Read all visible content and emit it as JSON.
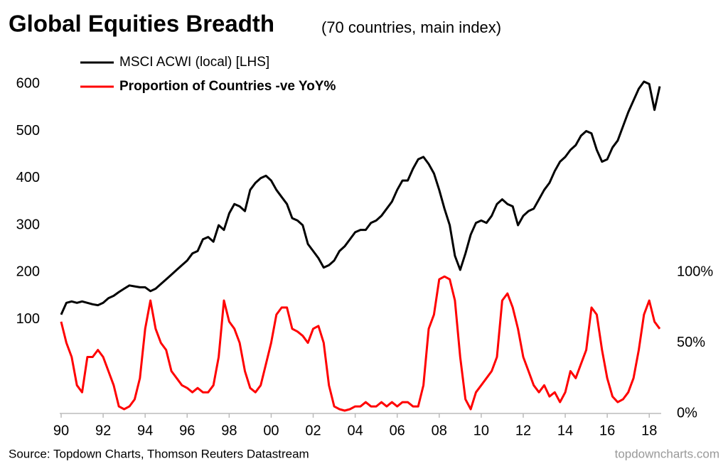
{
  "chart_data": {
    "type": "line",
    "title": "Global Equities Breadth",
    "subtitle": "(70 countries, main index)",
    "source": "Source: Topdown Charts, Thomson Reuters Datastream",
    "watermark": "topdowncharts.com",
    "x": [
      1990,
      1990.25,
      1990.5,
      1990.75,
      1991,
      1991.25,
      1991.5,
      1991.75,
      1992,
      1992.25,
      1992.5,
      1992.75,
      1993,
      1993.25,
      1993.5,
      1993.75,
      1994,
      1994.25,
      1994.5,
      1994.75,
      1995,
      1995.25,
      1995.5,
      1995.75,
      1996,
      1996.25,
      1996.5,
      1996.75,
      1997,
      1997.25,
      1997.5,
      1997.75,
      1998,
      1998.25,
      1998.5,
      1998.75,
      1999,
      1999.25,
      1999.5,
      1999.75,
      2000,
      2000.25,
      2000.5,
      2000.75,
      2001,
      2001.25,
      2001.5,
      2001.75,
      2002,
      2002.25,
      2002.5,
      2002.75,
      2003,
      2003.25,
      2003.5,
      2003.75,
      2004,
      2004.25,
      2004.5,
      2004.75,
      2005,
      2005.25,
      2005.5,
      2005.75,
      2006,
      2006.25,
      2006.5,
      2006.75,
      2007,
      2007.25,
      2007.5,
      2007.75,
      2008,
      2008.25,
      2008.5,
      2008.75,
      2009,
      2009.25,
      2009.5,
      2009.75,
      2010,
      2010.25,
      2010.5,
      2010.75,
      2011,
      2011.25,
      2011.5,
      2011.75,
      2012,
      2012.25,
      2012.5,
      2012.75,
      2013,
      2013.25,
      2013.5,
      2013.75,
      2014,
      2014.25,
      2014.5,
      2014.75,
      2015,
      2015.25,
      2015.5,
      2015.75,
      2016,
      2016.25,
      2016.5,
      2016.75,
      2017,
      2017.25,
      2017.5,
      2017.75,
      2018,
      2018.25,
      2018.5
    ],
    "series": [
      {
        "name": "MSCI ACWI (local) [LHS]",
        "color": "#000000",
        "axis": "y",
        "values": [
          110,
          135,
          138,
          135,
          138,
          135,
          132,
          130,
          135,
          145,
          150,
          158,
          165,
          172,
          170,
          168,
          168,
          160,
          165,
          175,
          185,
          195,
          205,
          215,
          225,
          240,
          245,
          270,
          275,
          265,
          300,
          290,
          325,
          345,
          340,
          330,
          375,
          390,
          400,
          405,
          395,
          375,
          360,
          345,
          315,
          310,
          300,
          260,
          245,
          230,
          210,
          215,
          225,
          245,
          255,
          270,
          285,
          290,
          290,
          305,
          310,
          320,
          335,
          350,
          375,
          395,
          395,
          420,
          440,
          445,
          430,
          410,
          375,
          335,
          300,
          235,
          205,
          240,
          280,
          305,
          310,
          305,
          320,
          345,
          355,
          345,
          340,
          300,
          320,
          330,
          335,
          355,
          375,
          390,
          415,
          435,
          445,
          460,
          470,
          490,
          500,
          495,
          460,
          435,
          440,
          465,
          480,
          510,
          540,
          565,
          590,
          605,
          600,
          545,
          595
        ]
      },
      {
        "name": "Proportion of Countries -ve YoY%",
        "color": "#ff0000",
        "axis": "y2",
        "values": [
          65,
          50,
          40,
          20,
          15,
          40,
          40,
          45,
          40,
          30,
          20,
          5,
          3,
          5,
          10,
          25,
          60,
          80,
          60,
          50,
          45,
          30,
          25,
          20,
          18,
          15,
          18,
          15,
          15,
          20,
          40,
          80,
          65,
          60,
          50,
          30,
          18,
          15,
          20,
          35,
          50,
          70,
          75,
          75,
          60,
          58,
          55,
          50,
          60,
          62,
          50,
          20,
          5,
          3,
          2,
          3,
          5,
          5,
          8,
          5,
          5,
          8,
          5,
          8,
          5,
          8,
          8,
          5,
          5,
          20,
          60,
          70,
          95,
          97,
          95,
          80,
          40,
          10,
          3,
          15,
          20,
          25,
          30,
          40,
          80,
          85,
          75,
          60,
          40,
          30,
          20,
          15,
          20,
          12,
          15,
          8,
          15,
          30,
          25,
          35,
          45,
          75,
          70,
          45,
          25,
          12,
          8,
          10,
          15,
          25,
          45,
          70,
          80,
          65,
          60
        ]
      }
    ],
    "xlim": [
      1990,
      2018.5
    ],
    "xticks": [
      {
        "value": 1990,
        "label": "90"
      },
      {
        "value": 1992,
        "label": "92"
      },
      {
        "value": 1994,
        "label": "94"
      },
      {
        "value": 1996,
        "label": "96"
      },
      {
        "value": 1998,
        "label": "98"
      },
      {
        "value": 2000,
        "label": "00"
      },
      {
        "value": 2002,
        "label": "02"
      },
      {
        "value": 2004,
        "label": "04"
      },
      {
        "value": 2006,
        "label": "06"
      },
      {
        "value": 2008,
        "label": "08"
      },
      {
        "value": 2010,
        "label": "10"
      },
      {
        "value": 2012,
        "label": "12"
      },
      {
        "value": 2014,
        "label": "14"
      },
      {
        "value": 2016,
        "label": "16"
      },
      {
        "value": 2018,
        "label": "18"
      }
    ],
    "ylim": [
      -100,
      620
    ],
    "yticks": [
      100,
      200,
      300,
      400,
      500,
      600
    ],
    "y2lim": [
      0,
      240
    ],
    "y2ticks": [
      {
        "value": 0,
        "label": "0%"
      },
      {
        "value": 50,
        "label": "50%"
      },
      {
        "value": 100,
        "label": "100%"
      }
    ],
    "grid": false
  }
}
